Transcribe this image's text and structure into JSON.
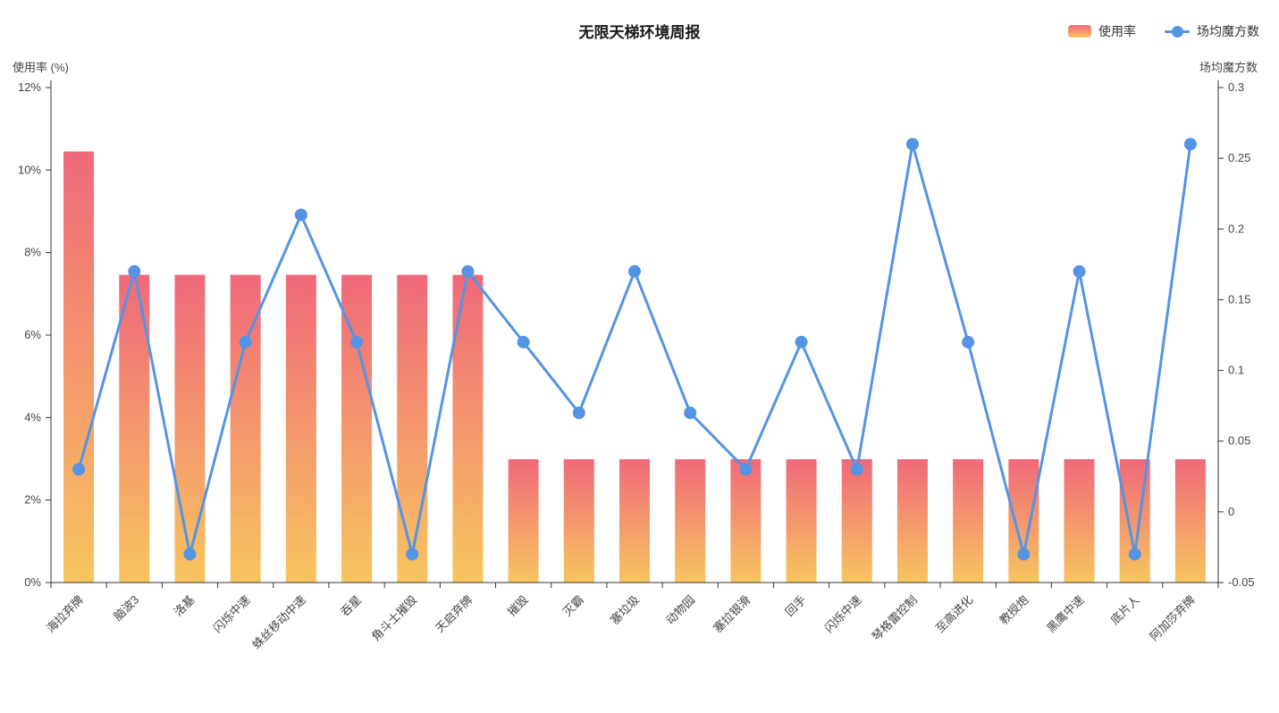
{
  "chart_data": {
    "type": "bar+line",
    "title": "无限天梯环境周报",
    "categories": [
      "海拉弃牌",
      "脑波3",
      "洛基",
      "闪烁中速",
      "蛛丝移动中速",
      "吞星",
      "角斗士摧毁",
      "天启弃牌",
      "摧毁",
      "灭霸",
      "塞垃圾",
      "动物园",
      "塞拉银滑",
      "回手",
      "闪烁中速",
      "琴格雷控制",
      "至高进化",
      "教授炮",
      "黑鹰中速",
      "底片人",
      "阿加莎弃牌"
    ],
    "series": [
      {
        "name": "使用率",
        "type": "bar",
        "axis": "left",
        "unit": "%",
        "values": [
          10.45,
          7.46,
          7.46,
          7.46,
          7.46,
          7.46,
          7.46,
          7.46,
          2.99,
          2.99,
          2.99,
          2.99,
          2.99,
          2.99,
          2.99,
          2.99,
          2.99,
          2.99,
          2.99,
          2.99,
          2.99
        ]
      },
      {
        "name": "场均魔方数",
        "type": "line",
        "axis": "right",
        "values": [
          0.03,
          0.17,
          -0.03,
          0.12,
          0.21,
          0.12,
          -0.03,
          0.17,
          0.12,
          0.07,
          0.17,
          0.07,
          0.03,
          0.12,
          0.03,
          0.26,
          0.12,
          -0.03,
          0.17,
          -0.03,
          0.26
        ]
      }
    ],
    "left_axis": {
      "name": "使用率 (%)",
      "min": 0,
      "max": 12,
      "ticks": [
        {
          "value": 0,
          "label": "0%"
        },
        {
          "value": 2,
          "label": "2%"
        },
        {
          "value": 4,
          "label": "4%"
        },
        {
          "value": 6,
          "label": "6%"
        },
        {
          "value": 8,
          "label": "8%"
        },
        {
          "value": 10,
          "label": "10%"
        },
        {
          "value": 12,
          "label": "12%"
        }
      ]
    },
    "right_axis": {
      "name": "场均魔方数",
      "min": -0.05,
      "max": 0.3,
      "ticks": [
        {
          "value": -0.05,
          "label": "-0.05"
        },
        {
          "value": 0,
          "label": "0"
        },
        {
          "value": 0.05,
          "label": "0.05"
        },
        {
          "value": 0.1,
          "label": "0.1"
        },
        {
          "value": 0.15,
          "label": "0.15"
        },
        {
          "value": 0.2,
          "label": "0.2"
        },
        {
          "value": 0.25,
          "label": "0.25"
        },
        {
          "value": 0.3,
          "label": "0.3"
        }
      ]
    },
    "grid": false,
    "legend_position": "top-right",
    "x_label_rotation": -45,
    "colors": {
      "bar_top": "#F0697B",
      "bar_bottom": "#F8C55F",
      "line": "#5494E4",
      "axis": "#333333",
      "label": "#444444"
    }
  }
}
